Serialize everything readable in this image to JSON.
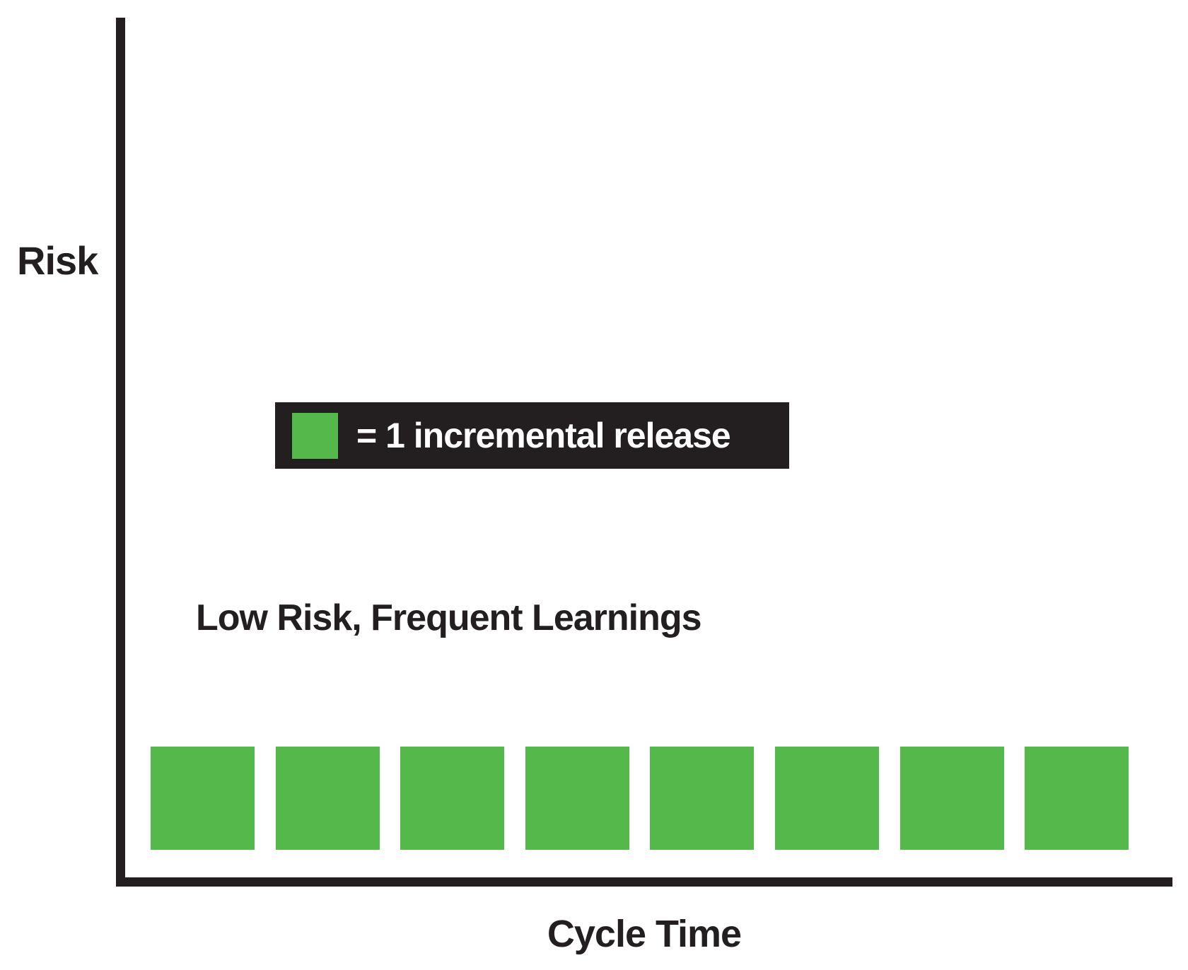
{
  "figure": {
    "y_axis_label": "Risk",
    "x_axis_label": "Cycle Time",
    "annotation": "Low Risk, Frequent Learnings",
    "legend": {
      "swatch": "green-square",
      "label": "= 1 incremental release"
    },
    "colors": {
      "axis": "#231f20",
      "release_green": "#54b84a",
      "legend_background": "#231f20",
      "legend_text": "#ffffff",
      "background": "#ffffff"
    }
  },
  "chart_data": {
    "type": "scatter",
    "title": "",
    "xlabel": "Cycle Time",
    "ylabel": "Risk",
    "grid": false,
    "axis_ticks": {
      "x": [],
      "y": []
    },
    "axis_ranges": {
      "x": "unlabeled qualitative",
      "y": "unlabeled qualitative"
    },
    "legend_entries": [
      {
        "marker": "green-square",
        "label": "= 1 incremental release",
        "position": "inside upper-middle, black box"
      }
    ],
    "annotations": [
      {
        "text": "Low Risk, Frequent Learnings",
        "position": "inside lower-left area"
      }
    ],
    "series": [
      {
        "name": "incremental releases",
        "marker": "large green square",
        "count": 8,
        "points": [
          {
            "x": 1,
            "risk": "low"
          },
          {
            "x": 2,
            "risk": "low"
          },
          {
            "x": 3,
            "risk": "low"
          },
          {
            "x": 4,
            "risk": "low"
          },
          {
            "x": 5,
            "risk": "low"
          },
          {
            "x": 6,
            "risk": "low"
          },
          {
            "x": 7,
            "risk": "low"
          },
          {
            "x": 8,
            "risk": "low"
          }
        ],
        "note": "8 identical squares evenly spaced along the x-axis at a constant low risk level"
      }
    ]
  }
}
